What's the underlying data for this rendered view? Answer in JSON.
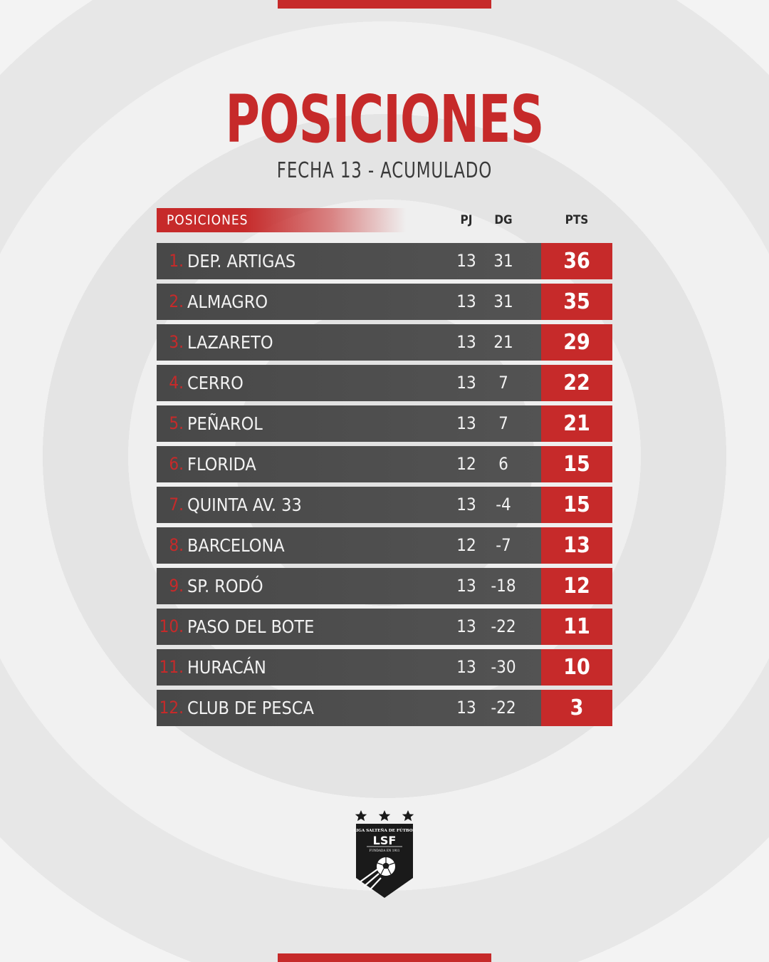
{
  "title": "POSICIONES",
  "subtitle": "FECHA 13 - ACUMULADO",
  "table": {
    "header_label": "POSICIONES",
    "col_pj": "PJ",
    "col_dg": "DG",
    "col_pts": "PTS",
    "rows": [
      {
        "pos": "1.",
        "team": "DEP. ARTIGAS",
        "pj": "13",
        "dg": "31",
        "pts": "36"
      },
      {
        "pos": "2.",
        "team": "ALMAGRO",
        "pj": "13",
        "dg": "31",
        "pts": "35"
      },
      {
        "pos": "3.",
        "team": "LAZARETO",
        "pj": "13",
        "dg": "21",
        "pts": "29"
      },
      {
        "pos": "4.",
        "team": "CERRO",
        "pj": "13",
        "dg": "7",
        "pts": "22"
      },
      {
        "pos": "5.",
        "team": "PEÑAROL",
        "pj": "13",
        "dg": "7",
        "pts": "21"
      },
      {
        "pos": "6.",
        "team": "FLORIDA",
        "pj": "12",
        "dg": "6",
        "pts": "15"
      },
      {
        "pos": "7.",
        "team": "QUINTA AV. 33",
        "pj": "13",
        "dg": "-4",
        "pts": "15"
      },
      {
        "pos": "8.",
        "team": "BARCELONA",
        "pj": "12",
        "dg": "-7",
        "pts": "13"
      },
      {
        "pos": "9.",
        "team": "SP. RODÓ",
        "pj": "13",
        "dg": "-18",
        "pts": "12"
      },
      {
        "pos": "10.",
        "team": "PASO DEL BOTE",
        "pj": "13",
        "dg": "-22",
        "pts": "11"
      },
      {
        "pos": "11.",
        "team": "HURACÁN",
        "pj": "13",
        "dg": "-30",
        "pts": "10"
      },
      {
        "pos": "12.",
        "team": "CLUB DE PESCA",
        "pj": "13",
        "dg": "-22",
        "pts": "3"
      }
    ]
  },
  "logo": {
    "icon": "league-shield-logo",
    "name": "LIGA SALTEÑA DE FÚTBOL",
    "initials": "LSF",
    "founded": "FUNDADA EN 1911"
  },
  "colors": {
    "accent": "#c62a2a",
    "row_bg": "#4e4e4e",
    "text_dark": "#3a3a3a"
  }
}
